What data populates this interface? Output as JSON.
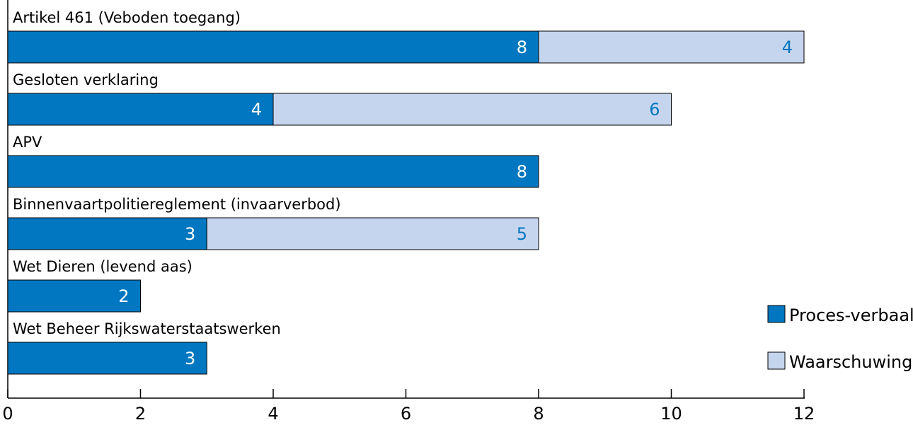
{
  "chart_data": {
    "type": "bar",
    "orientation": "horizontal",
    "stacked": true,
    "categories": [
      "Artikel 461 (Veboden toegang)",
      "Gesloten verklaring",
      "APV",
      "Binnenvaartpolitiereglement (invaarverbod)",
      "Wet Dieren (levend aas)",
      "Wet Beheer Rijkswaterstaatswerken"
    ],
    "series": [
      {
        "name": "Proces-verbaal",
        "values": [
          8,
          4,
          8,
          3,
          2,
          3
        ],
        "color": "#0077c0",
        "label_color": "#ffffff"
      },
      {
        "name": "Waarschuwing",
        "values": [
          4,
          6,
          0,
          5,
          0,
          0
        ],
        "color": "#c6d5ee",
        "label_color": "#0077c0"
      }
    ],
    "x_ticks": [
      "0",
      "2",
      "4",
      "6",
      "8",
      "10",
      "12"
    ],
    "xlim": [
      0,
      12
    ],
    "grid": false,
    "legend_position": "right"
  }
}
